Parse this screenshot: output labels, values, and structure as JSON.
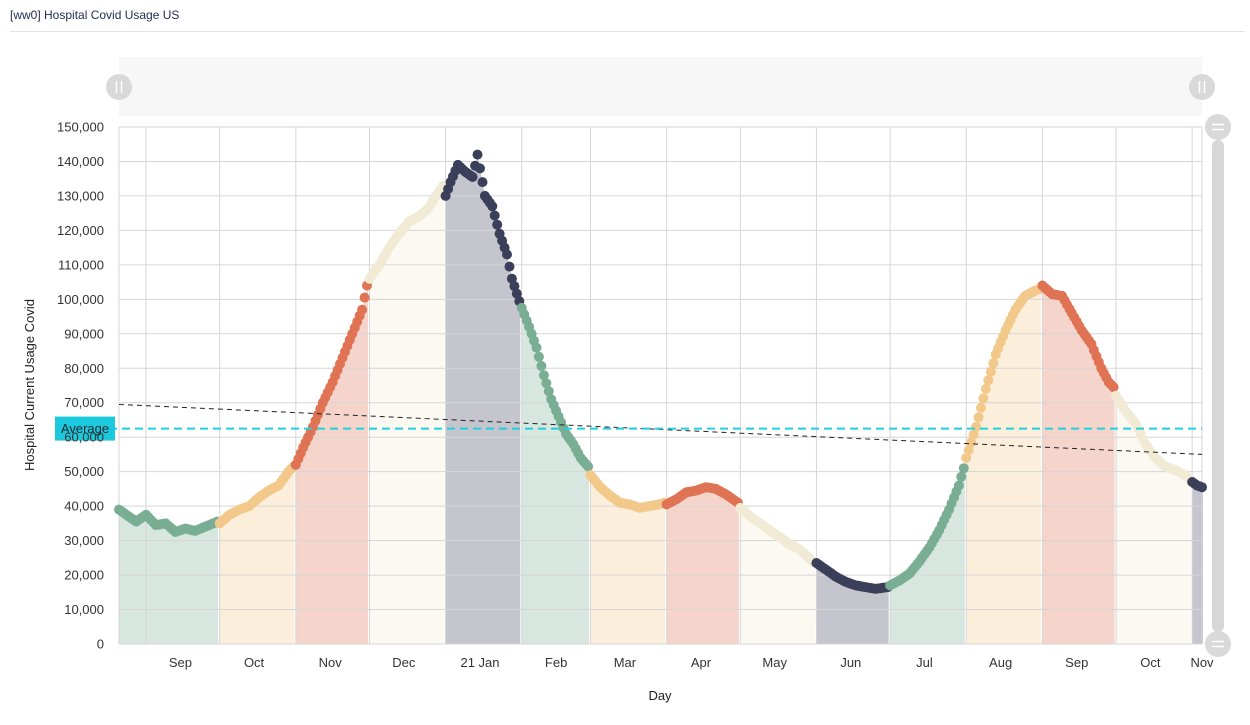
{
  "panel": {
    "title": "[ww0] Hospital Covid Usage US"
  },
  "colors": {
    "bands": [
      "#79ae95",
      "#f2c98b",
      "#df7354",
      "#f1ebd5",
      "#3b3f5a"
    ],
    "average_line": "#1fd0df",
    "average_label_bg": "#1cc9dc",
    "trend_line": "#222222",
    "grid": "#d6d6d6",
    "zoom_track": "#f7f7f7",
    "scroll_track": "#d7d7d7"
  },
  "chart_data": {
    "type": "scatter",
    "xlabel": "Day",
    "ylabel": "Hospital Current Usage Covid",
    "ylim": [
      0,
      150000
    ],
    "xlim": [
      "2020-08-21",
      "2021-11-05"
    ],
    "y_ticks": [
      0,
      10000,
      20000,
      30000,
      40000,
      50000,
      60000,
      70000,
      80000,
      90000,
      100000,
      110000,
      120000,
      130000,
      140000,
      150000
    ],
    "y_tick_labels": [
      "0",
      "10,000",
      "20,000",
      "30,000",
      "40,000",
      "50,000",
      "60,000",
      "70,000",
      "80,000",
      "90,000",
      "100,000",
      "110,000",
      "120,000",
      "130,000",
      "140,000",
      "150,000"
    ],
    "x_ticks": [
      {
        "label": "Sep",
        "date": "2020-09-15"
      },
      {
        "label": "Oct",
        "date": "2020-10-15"
      },
      {
        "label": "Nov",
        "date": "2020-11-15"
      },
      {
        "label": "Dec",
        "date": "2020-12-15"
      },
      {
        "label": "21 Jan",
        "date": "2021-01-15"
      },
      {
        "label": "Feb",
        "date": "2021-02-15"
      },
      {
        "label": "Mar",
        "date": "2021-03-15"
      },
      {
        "label": "Apr",
        "date": "2021-04-15"
      },
      {
        "label": "May",
        "date": "2021-05-15"
      },
      {
        "label": "Jun",
        "date": "2021-06-15"
      },
      {
        "label": "Jul",
        "date": "2021-07-15"
      },
      {
        "label": "Aug",
        "date": "2021-08-15"
      },
      {
        "label": "Sep",
        "date": "2021-09-15"
      },
      {
        "label": "Oct",
        "date": "2021-10-15"
      },
      {
        "label": "Nov",
        "date": "2021-11-05"
      }
    ],
    "average": {
      "label": "Average",
      "value": 62500
    },
    "trend": {
      "start": [
        "2020-08-21",
        69500
      ],
      "end": [
        "2021-11-05",
        55000
      ]
    },
    "grid": true,
    "legend": "none",
    "series": [
      {
        "band": 0,
        "start": "2020-08-21",
        "end": "2020-09-30",
        "points": [
          [
            "2020-08-21",
            39000
          ],
          [
            "2020-08-25",
            37000
          ],
          [
            "2020-08-28",
            35500
          ],
          [
            "2020-09-01",
            37500
          ],
          [
            "2020-09-05",
            34500
          ],
          [
            "2020-09-09",
            35000
          ],
          [
            "2020-09-13",
            32500
          ],
          [
            "2020-09-17",
            33500
          ],
          [
            "2020-09-21",
            32800
          ],
          [
            "2020-09-25",
            34000
          ],
          [
            "2020-09-30",
            35500
          ]
        ]
      },
      {
        "band": 1,
        "start": "2020-10-01",
        "end": "2020-10-31",
        "points": [
          [
            "2020-10-01",
            35000
          ],
          [
            "2020-10-05",
            37500
          ],
          [
            "2020-10-09",
            39000
          ],
          [
            "2020-10-13",
            40000
          ],
          [
            "2020-10-17",
            42500
          ],
          [
            "2020-10-21",
            44500
          ],
          [
            "2020-10-25",
            46000
          ],
          [
            "2020-10-29",
            50000
          ],
          [
            "2020-10-31",
            51500
          ]
        ]
      },
      {
        "band": 2,
        "start": "2020-11-01",
        "end": "2020-11-30",
        "points": [
          [
            "2020-11-01",
            52000
          ],
          [
            "2020-11-04",
            57000
          ],
          [
            "2020-11-08",
            63000
          ],
          [
            "2020-11-12",
            70000
          ],
          [
            "2020-11-16",
            76000
          ],
          [
            "2020-11-20",
            83000
          ],
          [
            "2020-11-24",
            90000
          ],
          [
            "2020-11-28",
            97000
          ],
          [
            "2020-11-30",
            104000
          ]
        ]
      },
      {
        "band": 3,
        "start": "2020-12-01",
        "end": "2020-12-31",
        "points": [
          [
            "2020-12-01",
            106000
          ],
          [
            "2020-12-05",
            110000
          ],
          [
            "2020-12-09",
            115000
          ],
          [
            "2020-12-13",
            119000
          ],
          [
            "2020-12-17",
            122500
          ],
          [
            "2020-12-21",
            124000
          ],
          [
            "2020-12-25",
            126500
          ],
          [
            "2020-12-29",
            131000
          ],
          [
            "2020-12-31",
            133000
          ]
        ]
      },
      {
        "band": 4,
        "start": "2021-01-01",
        "end": "2021-01-31",
        "points": [
          [
            "2021-01-01",
            130000
          ],
          [
            "2021-01-03",
            134000
          ],
          [
            "2021-01-06",
            139000
          ],
          [
            "2021-01-09",
            137000
          ],
          [
            "2021-01-12",
            135500
          ],
          [
            "2021-01-14",
            142000
          ],
          [
            "2021-01-17",
            130000
          ],
          [
            "2021-01-20",
            127000
          ],
          [
            "2021-01-23",
            119000
          ],
          [
            "2021-01-26",
            113000
          ],
          [
            "2021-01-28",
            106000
          ],
          [
            "2021-01-31",
            99500
          ]
        ]
      },
      {
        "band": 0,
        "start": "2021-02-01",
        "end": "2021-02-28",
        "points": [
          [
            "2021-02-01",
            97500
          ],
          [
            "2021-02-04",
            92000
          ],
          [
            "2021-02-07",
            86000
          ],
          [
            "2021-02-10",
            78000
          ],
          [
            "2021-02-13",
            71000
          ],
          [
            "2021-02-16",
            66000
          ],
          [
            "2021-02-19",
            61000
          ],
          [
            "2021-02-22",
            58000
          ],
          [
            "2021-02-25",
            54000
          ],
          [
            "2021-02-28",
            51500
          ]
        ]
      },
      {
        "band": 1,
        "start": "2021-03-01",
        "end": "2021-03-31",
        "points": [
          [
            "2021-03-01",
            49000
          ],
          [
            "2021-03-05",
            45500
          ],
          [
            "2021-03-09",
            43000
          ],
          [
            "2021-03-13",
            41000
          ],
          [
            "2021-03-17",
            40500
          ],
          [
            "2021-03-21",
            39500
          ],
          [
            "2021-03-25",
            40000
          ],
          [
            "2021-03-29",
            40500
          ],
          [
            "2021-03-31",
            41000
          ]
        ]
      },
      {
        "band": 2,
        "start": "2021-04-01",
        "end": "2021-04-30",
        "points": [
          [
            "2021-04-01",
            40500
          ],
          [
            "2021-04-05",
            42000
          ],
          [
            "2021-04-09",
            44000
          ],
          [
            "2021-04-13",
            44500
          ],
          [
            "2021-04-17",
            45500
          ],
          [
            "2021-04-21",
            45000
          ],
          [
            "2021-04-25",
            43500
          ],
          [
            "2021-04-29",
            41500
          ],
          [
            "2021-04-30",
            41000
          ]
        ]
      },
      {
        "band": 3,
        "start": "2021-05-01",
        "end": "2021-05-31",
        "points": [
          [
            "2021-05-01",
            39500
          ],
          [
            "2021-05-05",
            37000
          ],
          [
            "2021-05-09",
            35000
          ],
          [
            "2021-05-13",
            33000
          ],
          [
            "2021-05-17",
            31000
          ],
          [
            "2021-05-21",
            29000
          ],
          [
            "2021-05-25",
            27500
          ],
          [
            "2021-05-29",
            25000
          ],
          [
            "2021-05-31",
            23500
          ]
        ]
      },
      {
        "band": 4,
        "start": "2021-06-01",
        "end": "2021-06-30",
        "points": [
          [
            "2021-06-01",
            23500
          ],
          [
            "2021-06-05",
            21500
          ],
          [
            "2021-06-09",
            19500
          ],
          [
            "2021-06-13",
            18000
          ],
          [
            "2021-06-17",
            17000
          ],
          [
            "2021-06-21",
            16500
          ],
          [
            "2021-06-25",
            16000
          ],
          [
            "2021-06-30",
            16500
          ]
        ]
      },
      {
        "band": 0,
        "start": "2021-07-01",
        "end": "2021-07-31",
        "points": [
          [
            "2021-07-01",
            17000
          ],
          [
            "2021-07-05",
            18500
          ],
          [
            "2021-07-09",
            20500
          ],
          [
            "2021-07-13",
            24000
          ],
          [
            "2021-07-17",
            28000
          ],
          [
            "2021-07-21",
            33000
          ],
          [
            "2021-07-25",
            39000
          ],
          [
            "2021-07-29",
            46000
          ],
          [
            "2021-07-31",
            51000
          ]
        ]
      },
      {
        "band": 1,
        "start": "2021-08-01",
        "end": "2021-08-31",
        "points": [
          [
            "2021-08-01",
            54000
          ],
          [
            "2021-08-05",
            63000
          ],
          [
            "2021-08-09",
            74000
          ],
          [
            "2021-08-13",
            84000
          ],
          [
            "2021-08-17",
            91000
          ],
          [
            "2021-08-21",
            97000
          ],
          [
            "2021-08-25",
            101000
          ],
          [
            "2021-08-29",
            102500
          ],
          [
            "2021-08-31",
            103000
          ]
        ]
      },
      {
        "band": 2,
        "start": "2021-09-01",
        "end": "2021-09-30",
        "points": [
          [
            "2021-09-01",
            104000
          ],
          [
            "2021-09-05",
            101500
          ],
          [
            "2021-09-09",
            101000
          ],
          [
            "2021-09-13",
            96000
          ],
          [
            "2021-09-17",
            91000
          ],
          [
            "2021-09-21",
            87000
          ],
          [
            "2021-09-25",
            80000
          ],
          [
            "2021-09-28",
            76000
          ],
          [
            "2021-09-30",
            74500
          ]
        ]
      },
      {
        "band": 3,
        "start": "2021-10-01",
        "end": "2021-10-31",
        "points": [
          [
            "2021-10-01",
            72000
          ],
          [
            "2021-10-05",
            67500
          ],
          [
            "2021-10-09",
            64000
          ],
          [
            "2021-10-13",
            58000
          ],
          [
            "2021-10-17",
            54000
          ],
          [
            "2021-10-21",
            51500
          ],
          [
            "2021-10-25",
            50500
          ],
          [
            "2021-10-29",
            49000
          ],
          [
            "2021-10-31",
            48000
          ]
        ]
      },
      {
        "band": 4,
        "start": "2021-11-01",
        "end": "2021-11-05",
        "points": [
          [
            "2021-11-01",
            47000
          ],
          [
            "2021-11-03",
            46000
          ],
          [
            "2021-11-05",
            45500
          ]
        ]
      }
    ]
  }
}
